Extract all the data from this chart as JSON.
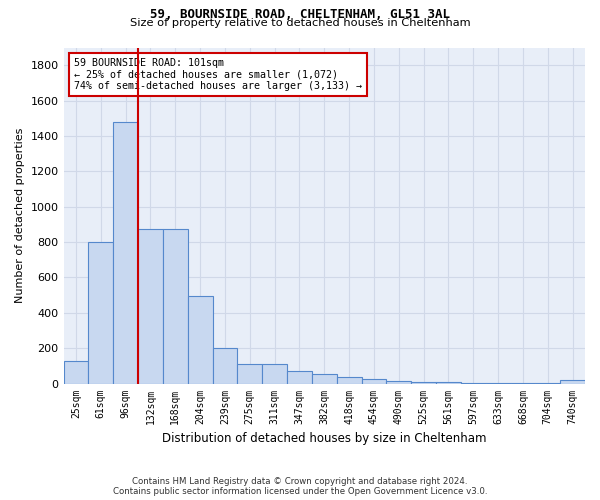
{
  "title1": "59, BOURNSIDE ROAD, CHELTENHAM, GL51 3AL",
  "title2": "Size of property relative to detached houses in Cheltenham",
  "xlabel": "Distribution of detached houses by size in Cheltenham",
  "ylabel": "Number of detached properties",
  "footer": "Contains HM Land Registry data © Crown copyright and database right 2024.\nContains public sector information licensed under the Open Government Licence v3.0.",
  "categories": [
    "25sqm",
    "61sqm",
    "96sqm",
    "132sqm",
    "168sqm",
    "204sqm",
    "239sqm",
    "275sqm",
    "311sqm",
    "347sqm",
    "382sqm",
    "418sqm",
    "454sqm",
    "490sqm",
    "525sqm",
    "561sqm",
    "597sqm",
    "633sqm",
    "668sqm",
    "704sqm",
    "740sqm"
  ],
  "values": [
    125,
    800,
    1480,
    875,
    875,
    495,
    200,
    110,
    110,
    70,
    55,
    35,
    25,
    15,
    10,
    10,
    5,
    5,
    5,
    5,
    20
  ],
  "bar_color": "#c8d8f0",
  "bar_edge_color": "#5588cc",
  "bg_color": "#e8eef8",
  "grid_color": "#d0d8e8",
  "annotation_box_text": "59 BOURNSIDE ROAD: 101sqm\n← 25% of detached houses are smaller (1,072)\n74% of semi-detached houses are larger (3,133) →",
  "vline_x": 2.5,
  "vline_color": "#cc0000",
  "annotation_box_color": "#ffffff",
  "annotation_box_edge_color": "#cc0000",
  "ylim": [
    0,
    1900
  ],
  "yticks": [
    0,
    200,
    400,
    600,
    800,
    1000,
    1200,
    1400,
    1600,
    1800
  ]
}
